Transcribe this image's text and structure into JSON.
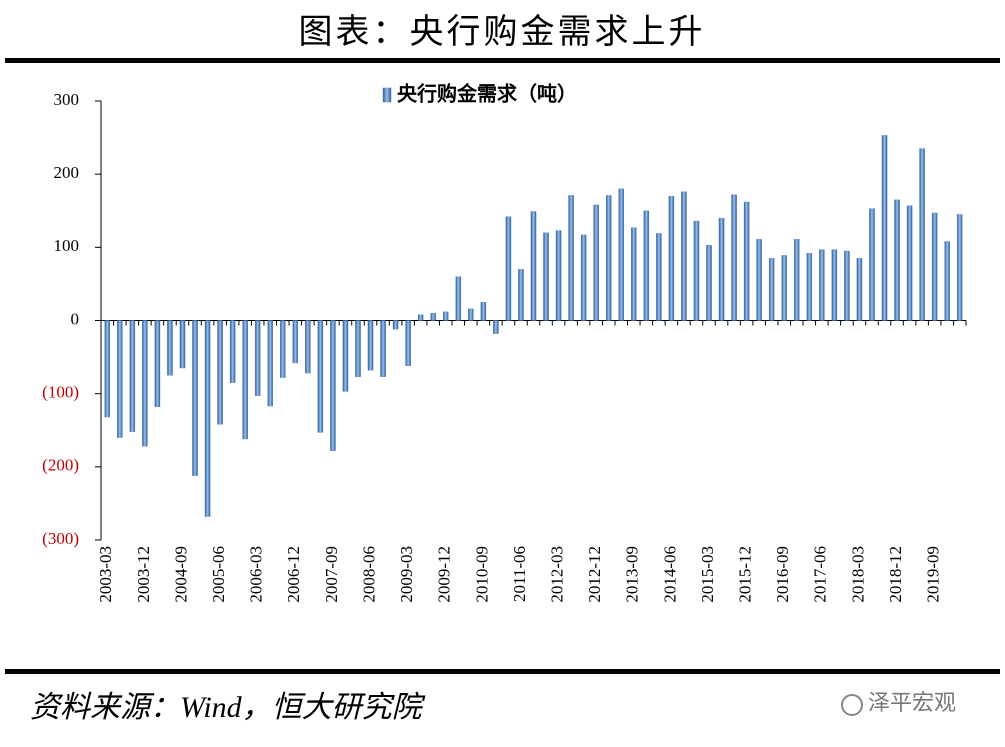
{
  "title": "图表：央行购金需求上升",
  "source": "资料来源：Wind，恒大研究院",
  "watermark": "泽平宏观",
  "chart_data": {
    "type": "bar",
    "categories": [
      "2003-03",
      null,
      null,
      "2003-12",
      null,
      null,
      "2004-09",
      null,
      null,
      "2005-06",
      null,
      null,
      "2006-03",
      null,
      null,
      "2006-12",
      null,
      null,
      "2007-09",
      null,
      null,
      "2008-06",
      null,
      null,
      "2009-03",
      null,
      null,
      "2009-12",
      null,
      null,
      "2010-09",
      null,
      null,
      "2011-06",
      null,
      null,
      "2012-03",
      null,
      null,
      "2012-12",
      null,
      null,
      "2013-09",
      null,
      null,
      "2014-06",
      null,
      null,
      "2015-03",
      null,
      null,
      "2015-12",
      null,
      null,
      "2016-09",
      null,
      null,
      "2017-06",
      null,
      null,
      "2018-03",
      null,
      null,
      "2018-12",
      null,
      null,
      "2019-09",
      null,
      null
    ],
    "series": [
      {
        "name": "央行购金需求（吨）",
        "color": "#4f81bd",
        "values": [
          -132,
          -160,
          -152,
          -172,
          -118,
          -75,
          -65,
          -212,
          -268,
          -142,
          -85,
          -162,
          -103,
          -117,
          -78,
          -58,
          -72,
          -153,
          -178,
          -97,
          -77,
          -68,
          -77,
          -12,
          -62,
          8,
          10,
          12,
          60,
          16,
          25,
          -18,
          142,
          70,
          149,
          120,
          123,
          171,
          117,
          158,
          171,
          180,
          127,
          150,
          119,
          170,
          176,
          136,
          103,
          140,
          172,
          162,
          111,
          85,
          89,
          111,
          92,
          97,
          97,
          95,
          85,
          153,
          253,
          165,
          157,
          235,
          147,
          108,
          145
        ]
      }
    ],
    "ylim": [
      -300,
      300
    ],
    "yticks": [
      {
        "value": -300,
        "label": "(300)"
      },
      {
        "value": -200,
        "label": "(200)"
      },
      {
        "value": -100,
        "label": "(100)"
      },
      0,
      100,
      200,
      300
    ],
    "negative_tick_color": "#c00000",
    "legend": "top"
  }
}
